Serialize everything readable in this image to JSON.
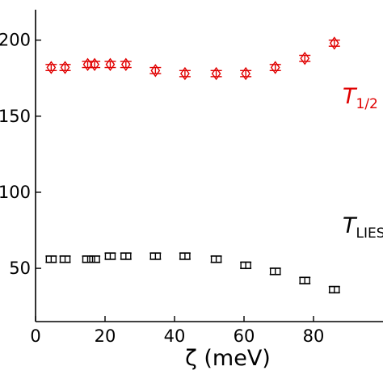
{
  "chart_data": {
    "type": "scatter",
    "title": "",
    "xlabel": "ζ (meV)",
    "ylabel": "",
    "xlim": [
      0,
      100
    ],
    "ylim": [
      15,
      220
    ],
    "xticks": [
      0,
      20,
      40,
      60,
      80
    ],
    "xtick_labels": [
      "0",
      "20",
      "40",
      "60",
      "80"
    ],
    "yticks": [
      50,
      100,
      150,
      200
    ],
    "ytick_labels": [
      "50",
      "100",
      "150",
      "200"
    ],
    "grid": false,
    "legend": "inline labels at right",
    "series": [
      {
        "name_main": "T",
        "name_sub": "1/2",
        "color": "#e00000",
        "marker": "diamond",
        "x": [
          4.5,
          8.5,
          15,
          17,
          21.5,
          26,
          34.5,
          43,
          52,
          60.5,
          69,
          77.5,
          86
        ],
        "y": [
          182,
          182,
          184,
          184,
          184,
          184,
          180,
          178,
          178,
          178,
          182,
          188,
          198
        ],
        "yerr": [
          2,
          2,
          2,
          2,
          2,
          2,
          2,
          2,
          2,
          2,
          2,
          2,
          2
        ]
      },
      {
        "name_main": "T",
        "name_sub": "LIES",
        "color": "#000000",
        "marker": "square",
        "x": [
          4.5,
          8.5,
          15,
          17,
          21.5,
          26,
          34.5,
          43,
          52,
          60.5,
          69,
          77.5,
          86
        ],
        "y": [
          56,
          56,
          56,
          56,
          58,
          58,
          58,
          58,
          56,
          52,
          48,
          42,
          36
        ],
        "yerr": [
          2,
          2,
          2,
          2,
          2,
          2,
          2,
          2,
          2,
          2,
          2,
          2,
          2
        ]
      }
    ]
  }
}
